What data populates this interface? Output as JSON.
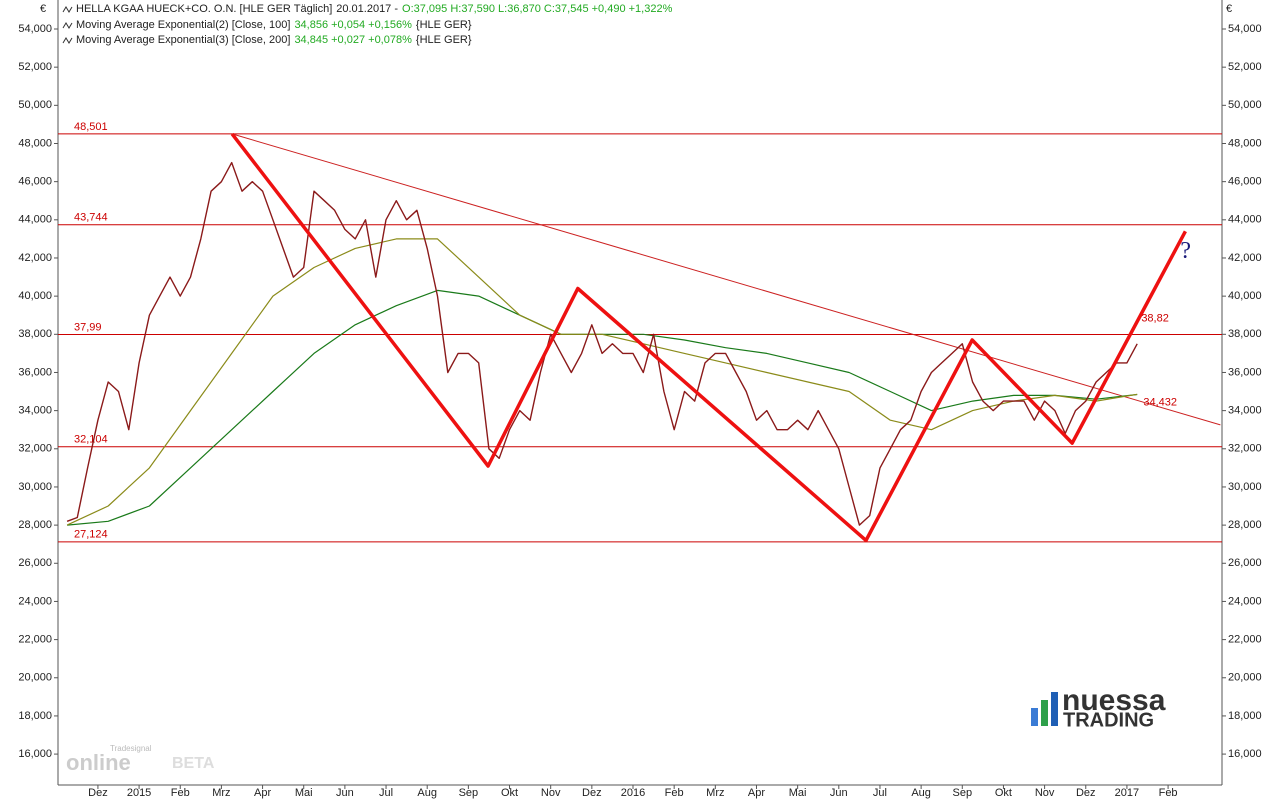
{
  "chart_data": {
    "type": "line",
    "currency": "€",
    "xlim": [
      -0.97,
      27.31
    ],
    "ylim": [
      14.38,
      55.52
    ],
    "xticks": [
      {
        "value": 0,
        "label": "Dez"
      },
      {
        "value": 1,
        "label": "2015"
      },
      {
        "value": 2,
        "label": "Feb"
      },
      {
        "value": 3,
        "label": "Mrz"
      },
      {
        "value": 4,
        "label": "Apr"
      },
      {
        "value": 5,
        "label": "Mai"
      },
      {
        "value": 6,
        "label": "Jun"
      },
      {
        "value": 7,
        "label": "Jul"
      },
      {
        "value": 8,
        "label": "Aug"
      },
      {
        "value": 9,
        "label": "Sep"
      },
      {
        "value": 10,
        "label": "Okt"
      },
      {
        "value": 11,
        "label": "Nov"
      },
      {
        "value": 12,
        "label": "Dez"
      },
      {
        "value": 13,
        "label": "2016"
      },
      {
        "value": 14,
        "label": "Feb"
      },
      {
        "value": 15,
        "label": "Mrz"
      },
      {
        "value": 16,
        "label": "Apr"
      },
      {
        "value": 17,
        "label": "Mai"
      },
      {
        "value": 18,
        "label": "Jun"
      },
      {
        "value": 19,
        "label": "Jul"
      },
      {
        "value": 20,
        "label": "Aug"
      },
      {
        "value": 21,
        "label": "Sep"
      },
      {
        "value": 22,
        "label": "Okt"
      },
      {
        "value": 23,
        "label": "Nov"
      },
      {
        "value": 24,
        "label": "Dez"
      },
      {
        "value": 25,
        "label": "2017"
      },
      {
        "value": 26,
        "label": "Feb"
      }
    ],
    "yticks": [
      {
        "value": 16,
        "label": "16,000"
      },
      {
        "value": 18,
        "label": "18,000"
      },
      {
        "value": 20,
        "label": "20,000"
      },
      {
        "value": 22,
        "label": "22,000"
      },
      {
        "value": 24,
        "label": "24,000"
      },
      {
        "value": 26,
        "label": "26,000"
      },
      {
        "value": 28,
        "label": "28,000"
      },
      {
        "value": 30,
        "label": "30,000"
      },
      {
        "value": 32,
        "label": "32,000"
      },
      {
        "value": 34,
        "label": "34,000"
      },
      {
        "value": 36,
        "label": "36,000"
      },
      {
        "value": 38,
        "label": "38,000"
      },
      {
        "value": 40,
        "label": "40,000"
      },
      {
        "value": 42,
        "label": "42,000"
      },
      {
        "value": 44,
        "label": "44,000"
      },
      {
        "value": 46,
        "label": "46,000"
      },
      {
        "value": 48,
        "label": "48,000"
      },
      {
        "value": 50,
        "label": "50,000"
      },
      {
        "value": 52,
        "label": "52,000"
      },
      {
        "value": 54,
        "label": "54,000"
      }
    ],
    "series": [
      {
        "name": "HELLA KGAA HUECK+CO. O.N. [HLE GER  Täglich]",
        "date": "20.01.2017 -",
        "quote": "O:37,095 H:37,590 L:36,870 C:37,545 +0,490 +1,322%",
        "color": "#8b1a1a",
        "x": [
          -0.75,
          -0.5,
          -0.25,
          0,
          0.25,
          0.5,
          0.75,
          1,
          1.25,
          1.5,
          1.75,
          2,
          2.25,
          2.5,
          2.75,
          3,
          3.25,
          3.5,
          3.75,
          4,
          4.25,
          4.5,
          4.75,
          5,
          5.25,
          5.5,
          5.75,
          6,
          6.25,
          6.5,
          6.75,
          7,
          7.25,
          7.5,
          7.75,
          8,
          8.25,
          8.5,
          8.75,
          9,
          9.25,
          9.5,
          9.75,
          10,
          10.25,
          10.5,
          10.75,
          11,
          11.25,
          11.5,
          11.75,
          12,
          12.25,
          12.5,
          12.75,
          13,
          13.25,
          13.5,
          13.75,
          14,
          14.25,
          14.5,
          14.75,
          15,
          15.25,
          15.5,
          15.75,
          16,
          16.25,
          16.5,
          16.75,
          17,
          17.25,
          17.5,
          17.75,
          18,
          18.25,
          18.5,
          18.75,
          19,
          19.25,
          19.5,
          19.75,
          20,
          20.25,
          20.5,
          20.75,
          21,
          21.25,
          21.5,
          21.75,
          22,
          22.25,
          22.5,
          22.75,
          23,
          23.25,
          23.5,
          23.75,
          24,
          24.25,
          24.5,
          24.75,
          25,
          25.25
        ],
        "values": [
          28.2,
          28.4,
          31,
          33.5,
          35.5,
          35,
          33,
          36.5,
          39,
          40,
          41,
          40,
          41,
          43,
          45.5,
          46,
          47,
          45.5,
          46,
          45.5,
          44,
          42.5,
          41,
          41.5,
          45.5,
          45,
          44.5,
          43.5,
          43,
          44,
          41,
          44,
          45,
          44,
          44.5,
          42.5,
          40,
          36,
          37,
          37,
          36.5,
          32,
          31.5,
          33,
          34,
          33.5,
          36,
          38,
          37,
          36,
          37,
          38.5,
          37,
          37.5,
          37,
          37,
          36,
          38,
          35,
          33,
          35,
          34.5,
          36.5,
          37,
          37,
          36,
          35,
          33.5,
          34,
          33,
          33,
          33.5,
          33,
          34,
          33,
          32,
          30,
          28,
          28.5,
          31,
          32,
          33,
          33.5,
          35,
          36,
          36.5,
          37,
          37.5,
          35.5,
          34.5,
          34,
          34.5,
          34.5,
          34.5,
          33.5,
          34.5,
          34,
          32.8,
          34,
          34.5,
          35.5,
          36,
          36.5,
          36.5,
          37.5
        ]
      },
      {
        "name": "Moving Average Exponential(2) [Close, 100]",
        "quote": "34,856 +0,054 +0,156%",
        "symbol": "{HLE GER}",
        "color": "#8b8b1a",
        "x": [
          -0.75,
          0.25,
          1.25,
          2.25,
          3.25,
          4.25,
          5.25,
          6.25,
          7.25,
          8.25,
          9.25,
          10.25,
          11.25,
          12.25,
          13.25,
          14.25,
          15.25,
          16.25,
          17.25,
          18.25,
          19.25,
          20.25,
          21.25,
          22.25,
          23.25,
          24.25,
          25.25
        ],
        "values": [
          28,
          29,
          31,
          34,
          37,
          40,
          41.5,
          42.5,
          43,
          43,
          41,
          39,
          38,
          38,
          37.5,
          37,
          36.5,
          36,
          35.5,
          35,
          33.5,
          33,
          34,
          34.5,
          34.8,
          34.5,
          34.856
        ]
      },
      {
        "name": "Moving Average Exponential(3) [Close, 200]",
        "quote": "34,845 +0,027 +0,078%",
        "symbol": "{HLE GER}",
        "color": "#1a7a1a",
        "x": [
          -0.75,
          0.25,
          1.25,
          2.25,
          3.25,
          4.25,
          5.25,
          6.25,
          7.25,
          8.25,
          9.25,
          10.25,
          11.25,
          12.25,
          13.25,
          14.25,
          15.25,
          16.25,
          17.25,
          18.25,
          19.25,
          20.25,
          21.25,
          22.25,
          23.25,
          24.25,
          25.25
        ],
        "values": [
          28,
          28.2,
          29,
          31,
          33,
          35,
          37,
          38.5,
          39.5,
          40.3,
          40,
          39,
          38,
          38,
          38,
          37.7,
          37.3,
          37,
          36.5,
          36,
          35,
          34,
          34.5,
          34.8,
          34.8,
          34.6,
          34.845
        ]
      }
    ],
    "levels": [
      {
        "value": 48.501,
        "label": "48,501"
      },
      {
        "value": 43.744,
        "label": "43,744"
      },
      {
        "value": 37.99,
        "label": "37,99"
      },
      {
        "value": 32.104,
        "label": "32,104"
      },
      {
        "value": 27.124,
        "label": "27,124"
      }
    ],
    "level_color": "#cc0000",
    "zigzag": {
      "color": "#ee1111",
      "x": [
        3.26,
        9.48,
        11.66,
        18.66,
        21.24,
        23.67,
        26.42
      ],
      "values": [
        48.5,
        31.1,
        40.4,
        27.2,
        37.7,
        32.3,
        43.4
      ]
    },
    "trendline": {
      "color": "#cc2222",
      "x": [
        3.26,
        27.27
      ],
      "values": [
        48.5,
        33.25
      ]
    },
    "annotations": [
      {
        "text": "38,82",
        "x": 25.35,
        "y": 38.82,
        "color": "#cc0000"
      },
      {
        "text": "34,432",
        "x": 25.4,
        "y": 34.432,
        "color": "#cc0000"
      },
      {
        "text": "?",
        "x": 26.3,
        "y": 42.3,
        "color": "#1a1a7a"
      }
    ],
    "branding": {
      "logo_top": "nuessa",
      "logo_bottom": "TRADING",
      "watermark_small": "Tradesignal",
      "watermark": "online",
      "watermark_beta": "BETA"
    }
  }
}
